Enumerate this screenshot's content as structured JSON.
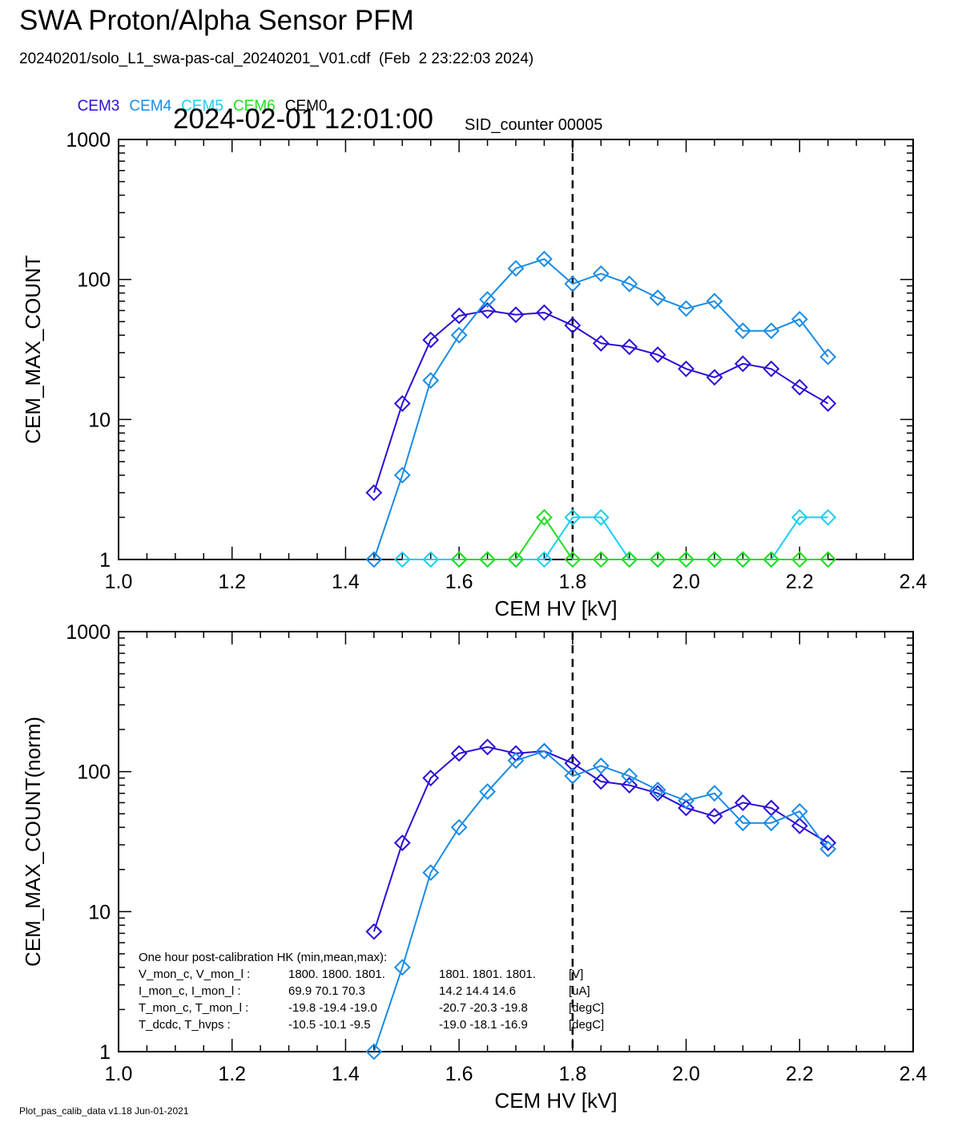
{
  "header": {
    "title": "SWA Proton/Alpha Sensor PFM",
    "subtitle": "20240201/solo_L1_swa-pas-cal_20240201_V01.cdf  (Feb  2 23:22:03 2024)",
    "timestamp": "2024-02-01 12:01:00",
    "sid": "SID_counter 00005"
  },
  "legend": [
    {
      "label": "CEM3",
      "color": "#2a0fd6"
    },
    {
      "label": "CEM4",
      "color": "#1a8ce6"
    },
    {
      "label": "CEM5",
      "color": "#1ccff0"
    },
    {
      "label": "CEM6",
      "color": "#22dd22"
    },
    {
      "label": "CEM0",
      "color": "#000000"
    }
  ],
  "footer": "Plot_pas_calib_data v1.18 Jun-01-2021",
  "housekeeping": {
    "heading": "One hour post-calibration HK (min,mean,max):",
    "rows": [
      {
        "name": "V_mon_c, V_mon_l :",
        "c": "1800.  1800.  1801.",
        "l": "1801.  1801.  1801.",
        "unit": "[V]"
      },
      {
        "name": "I_mon_c,  I_mon_l :",
        "c": "69.9   70.1   70.3",
        "l": "14.2   14.4   14.6",
        "unit": "[uA]"
      },
      {
        "name": "T_mon_c, T_mon_l :",
        "c": "-19.8  -19.4  -19.0",
        "l": "-20.7  -20.3  -19.8",
        "unit": "[degC]"
      },
      {
        "name": "T_dcdc,    T_hvps :",
        "c": "-10.5  -10.1   -9.5",
        "l": "-19.0  -18.1  -16.9",
        "unit": "[degC]"
      }
    ]
  },
  "chart_data": [
    {
      "type": "line",
      "xlabel": "CEM HV [kV]",
      "ylabel": "CEM_MAX_COUNT",
      "xlim": [
        1.0,
        2.4
      ],
      "ylim": [
        1,
        1000
      ],
      "yscale": "log",
      "xticks": [
        "1.0",
        "1.2",
        "1.4",
        "1.6",
        "1.8",
        "2.0",
        "2.2",
        "2.4"
      ],
      "yticks": [
        "1",
        "10",
        "100",
        "1000"
      ],
      "vline": 1.8,
      "x": [
        1.45,
        1.5,
        1.55,
        1.6,
        1.65,
        1.7,
        1.75,
        1.8,
        1.85,
        1.9,
        1.95,
        2.0,
        2.05,
        2.1,
        2.15,
        2.2,
        2.25
      ],
      "series": [
        {
          "name": "CEM3",
          "color": "#2a0fd6",
          "values": [
            3,
            13,
            37,
            55,
            60,
            56,
            58,
            47,
            35,
            33,
            29,
            23,
            20,
            25,
            23,
            17,
            13
          ]
        },
        {
          "name": "CEM4",
          "color": "#1a8ce6",
          "values": [
            1,
            4,
            19,
            40,
            72,
            120,
            140,
            93,
            110,
            93,
            74,
            62,
            70,
            43,
            43,
            52,
            28
          ]
        },
        {
          "name": "CEM5",
          "color": "#1ccff0",
          "values": [
            null,
            1,
            1,
            1,
            1,
            1,
            1,
            2,
            2,
            1,
            1,
            1,
            1,
            1,
            1,
            2,
            2
          ]
        },
        {
          "name": "CEM6",
          "color": "#22dd22",
          "values": [
            null,
            null,
            null,
            1,
            1,
            1,
            2,
            1,
            1,
            1,
            1,
            1,
            1,
            1,
            1,
            1,
            1
          ]
        }
      ]
    },
    {
      "type": "line",
      "xlabel": "CEM HV [kV]",
      "ylabel": "CEM_MAX_COUNT(norm)",
      "xlim": [
        1.0,
        2.4
      ],
      "ylim": [
        1,
        1000
      ],
      "yscale": "log",
      "xticks": [
        "1.0",
        "1.2",
        "1.4",
        "1.6",
        "1.8",
        "2.0",
        "2.2",
        "2.4"
      ],
      "yticks": [
        "1",
        "10",
        "100",
        "1000"
      ],
      "vline": 1.8,
      "x": [
        1.45,
        1.5,
        1.55,
        1.6,
        1.65,
        1.7,
        1.75,
        1.8,
        1.85,
        1.9,
        1.95,
        2.0,
        2.05,
        2.1,
        2.15,
        2.2,
        2.25
      ],
      "series": [
        {
          "name": "CEM3",
          "color": "#2a0fd6",
          "values": [
            7.2,
            31,
            90,
            135,
            150,
            135,
            140,
            115,
            85,
            80,
            70,
            55,
            48,
            60,
            55,
            41,
            31
          ]
        },
        {
          "name": "CEM4",
          "color": "#1a8ce6",
          "values": [
            1,
            4,
            19,
            40,
            72,
            120,
            140,
            93,
            110,
            93,
            74,
            62,
            70,
            43,
            43,
            52,
            28
          ]
        }
      ]
    }
  ]
}
